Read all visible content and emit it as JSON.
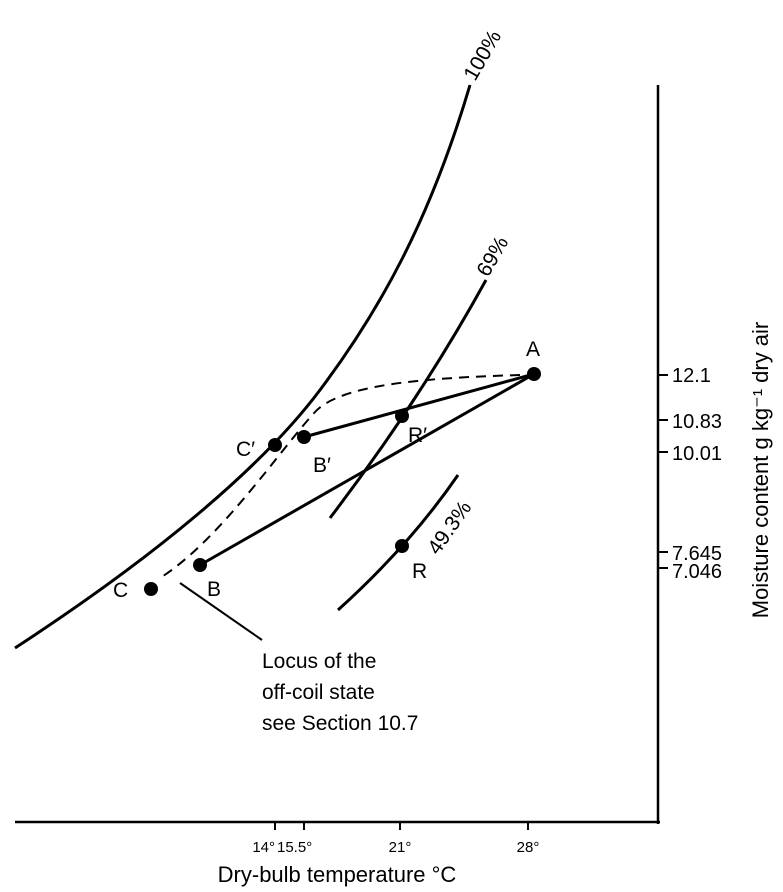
{
  "diagram": {
    "x_axis_title": "Dry-bulb temperature °C",
    "y_axis_title": "Moisture content g kg⁻¹ dry air",
    "x_ticks": [
      "14°",
      "15.5°",
      "21°",
      "28°"
    ],
    "y_ticks": [
      "12.1",
      "10.83",
      "10.01",
      "7.645",
      "7.046"
    ],
    "curve_labels": {
      "saturation": "100%",
      "rh69": "69%",
      "rh49": "49.3%"
    },
    "points": {
      "A": "A",
      "B": "B",
      "B_prime": "B′",
      "C": "C",
      "C_prime": "C′",
      "R": "R",
      "R_prime": "R′"
    },
    "annotation": [
      "Locus of the",
      "off-coil state",
      "see Section 10.7"
    ]
  }
}
